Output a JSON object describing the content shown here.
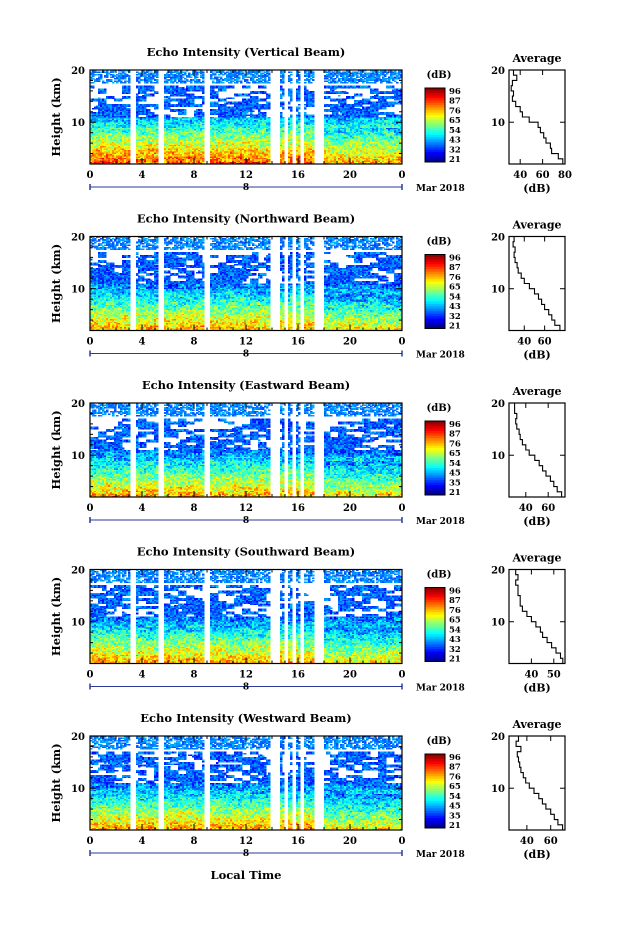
{
  "figure": {
    "xlabel": "Local Time",
    "date_label": "Mar 2018",
    "colorbar_unit": "(dB)",
    "colorbar_ticks": [
      [
        "96",
        "87",
        "76",
        "65",
        "54",
        "43",
        "32",
        "21"
      ],
      [
        "96",
        "87",
        "76",
        "65",
        "54",
        "43",
        "32",
        "21"
      ],
      [
        "96",
        "87",
        "76",
        "65",
        "54",
        "45",
        "35",
        "21"
      ],
      [
        "96",
        "87",
        "76",
        "65",
        "54",
        "43",
        "32",
        "21"
      ],
      [
        "96",
        "87",
        "76",
        "65",
        "54",
        "45",
        "35",
        "21"
      ]
    ],
    "avg_title": "Average",
    "avg_xlabel": "(dB)"
  },
  "chart_data": [
    {
      "type": "heatmap",
      "title": "Echo Intensity (Vertical Beam)",
      "ylabel": "Height (km)",
      "xlim": [
        0,
        24
      ],
      "ylim": [
        2,
        20
      ],
      "x_ticks": [
        "0",
        "4",
        "8",
        "12",
        "16",
        "20",
        "0"
      ],
      "x_marker": "8",
      "y_ticks": [
        "20",
        "10"
      ],
      "gaps": [
        [
          3.1,
          3.6
        ],
        [
          5.3,
          5.7
        ],
        [
          8.8,
          9.3
        ],
        [
          13.9,
          14.6
        ],
        [
          14.9,
          15.3
        ],
        [
          15.6,
          15.9
        ],
        [
          16.2,
          16.5
        ],
        [
          17.2,
          18.0
        ]
      ],
      "avg_profile": {
        "x_ticks": [
          "40",
          "60",
          "80"
        ],
        "xlim": [
          30,
          80
        ],
        "height": [
          2,
          3,
          4,
          5,
          6,
          7,
          8,
          9,
          10,
          11,
          12,
          13,
          14,
          15,
          16,
          17,
          18,
          19,
          20
        ],
        "db": [
          78,
          74,
          68,
          67,
          63,
          61,
          58,
          56,
          48,
          42,
          40,
          36,
          33,
          34,
          32,
          33,
          37,
          34,
          34
        ]
      }
    },
    {
      "type": "heatmap",
      "title": "Echo Intensity (Northward Beam)",
      "ylabel": "Height (km)",
      "xlim": [
        0,
        24
      ],
      "ylim": [
        2,
        20
      ],
      "x_ticks": [
        "0",
        "4",
        "8",
        "12",
        "16",
        "20",
        "0"
      ],
      "x_marker": "8",
      "y_ticks": [
        "20",
        "10"
      ],
      "gaps": [
        [
          3.1,
          3.6
        ],
        [
          5.3,
          5.7
        ],
        [
          8.8,
          9.3
        ],
        [
          13.9,
          14.6
        ],
        [
          14.9,
          15.3
        ],
        [
          15.6,
          15.9
        ],
        [
          16.2,
          16.5
        ],
        [
          17.2,
          18.0
        ]
      ],
      "avg_profile": {
        "x_ticks": [
          "40",
          "60"
        ],
        "xlim": [
          25,
          80
        ],
        "height": [
          2,
          3,
          4,
          5,
          6,
          7,
          8,
          9,
          10,
          11,
          12,
          13,
          14,
          15,
          16,
          17,
          18,
          19,
          20
        ],
        "db": [
          75,
          70,
          67,
          64,
          60,
          57,
          54,
          50,
          45,
          40,
          37,
          34,
          33,
          31,
          30,
          31,
          29,
          30,
          28
        ]
      }
    },
    {
      "type": "heatmap",
      "title": "Echo Intensity (Eastward Beam)",
      "ylabel": "Height (km)",
      "xlim": [
        0,
        24
      ],
      "ylim": [
        2,
        20
      ],
      "x_ticks": [
        "0",
        "4",
        "8",
        "12",
        "16",
        "20",
        "0"
      ],
      "x_marker": "8",
      "y_ticks": [
        "20",
        "10"
      ],
      "gaps": [
        [
          3.1,
          3.6
        ],
        [
          5.3,
          5.7
        ],
        [
          8.8,
          9.3
        ],
        [
          13.9,
          14.6
        ],
        [
          14.9,
          15.3
        ],
        [
          15.6,
          15.9
        ],
        [
          16.2,
          16.5
        ],
        [
          17.2,
          18.0
        ]
      ],
      "avg_profile": {
        "x_ticks": [
          "40",
          "60"
        ],
        "xlim": [
          25,
          75
        ],
        "height": [
          2,
          3,
          4,
          5,
          6,
          7,
          8,
          9,
          10,
          11,
          12,
          13,
          14,
          15,
          16,
          17,
          18,
          19,
          20
        ],
        "db": [
          72,
          68,
          65,
          62,
          58,
          55,
          52,
          48,
          43,
          40,
          37,
          35,
          34,
          32,
          31,
          32,
          30,
          30,
          28
        ]
      }
    },
    {
      "type": "heatmap",
      "title": "Echo Intensity (Southward Beam)",
      "ylabel": "Height (km)",
      "xlim": [
        0,
        24
      ],
      "ylim": [
        2,
        20
      ],
      "x_ticks": [
        "0",
        "4",
        "8",
        "12",
        "16",
        "20",
        "0"
      ],
      "x_marker": "8",
      "y_ticks": [
        "20",
        "10"
      ],
      "gaps": [
        [
          3.1,
          3.6
        ],
        [
          5.3,
          5.7
        ],
        [
          8.8,
          9.3
        ],
        [
          13.9,
          14.6
        ],
        [
          14.9,
          15.3
        ],
        [
          15.6,
          15.9
        ],
        [
          16.2,
          16.5
        ],
        [
          17.2,
          18.0
        ]
      ],
      "avg_profile": {
        "x_ticks": [
          "40",
          "50"
        ],
        "xlim": [
          30,
          55
        ],
        "height": [
          2,
          3,
          4,
          5,
          6,
          7,
          8,
          9,
          10,
          11,
          12,
          13,
          14,
          15,
          16,
          17,
          18,
          19,
          20
        ],
        "db": [
          54,
          53,
          51,
          49,
          47,
          45,
          44,
          42,
          40,
          38,
          36,
          35,
          35,
          34,
          34,
          33,
          34,
          33,
          34
        ]
      }
    },
    {
      "type": "heatmap",
      "title": "Echo Intensity (Westward Beam)",
      "ylabel": "Height (km)",
      "xlim": [
        0,
        24
      ],
      "ylim": [
        2,
        20
      ],
      "x_ticks": [
        "0",
        "4",
        "8",
        "12",
        "16",
        "20",
        "0"
      ],
      "x_marker": "8",
      "y_ticks": [
        "20",
        "10"
      ],
      "gaps": [
        [
          3.1,
          3.6
        ],
        [
          5.3,
          5.7
        ],
        [
          8.8,
          9.3
        ],
        [
          13.9,
          14.6
        ],
        [
          14.9,
          15.3
        ],
        [
          15.6,
          15.9
        ],
        [
          16.2,
          16.5
        ],
        [
          17.2,
          18.0
        ]
      ],
      "avg_profile": {
        "x_ticks": [
          "40",
          "60"
        ],
        "xlim": [
          25,
          72
        ],
        "height": [
          2,
          3,
          4,
          5,
          6,
          7,
          8,
          9,
          10,
          11,
          12,
          13,
          14,
          15,
          16,
          17,
          18,
          19,
          20
        ],
        "db": [
          70,
          66,
          63,
          60,
          56,
          53,
          50,
          46,
          42,
          39,
          37,
          35,
          34,
          33,
          32,
          35,
          31,
          33,
          32
        ]
      }
    }
  ]
}
